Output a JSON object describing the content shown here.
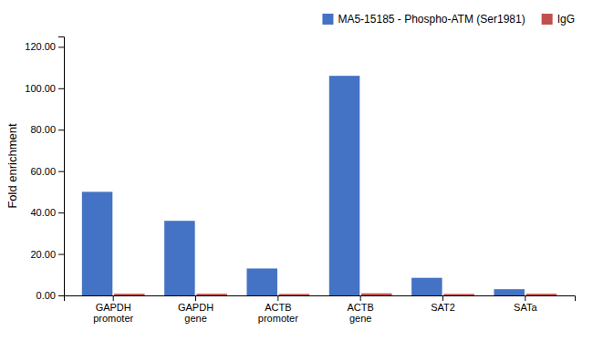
{
  "chart_data": {
    "type": "bar",
    "ylabel": "Fold enrichment",
    "categories": [
      "GAPDH\npromoter",
      "GAPDH\ngene",
      "ACTB\npromoter",
      "ACTB\ngene",
      "SAT2",
      "SATa"
    ],
    "series": [
      {
        "name": "MA5-15185 - Phospho-ATM (Ser1981)",
        "color": "#4472C4",
        "values": [
          50.0,
          36.0,
          13.0,
          106.0,
          8.5,
          3.0
        ]
      },
      {
        "name": "IgG",
        "color": "#C0504D",
        "values": [
          0.8,
          0.8,
          0.7,
          1.0,
          0.7,
          0.8
        ]
      }
    ],
    "ylim": [
      0,
      125
    ],
    "yticks": [
      {
        "value": 0.0,
        "label": "0.00"
      },
      {
        "value": 20.0,
        "label": "20.00"
      },
      {
        "value": 40.0,
        "label": "40.00"
      },
      {
        "value": 60.0,
        "label": "60.00"
      },
      {
        "value": 80.0,
        "label": "80.00"
      },
      {
        "value": 100.0,
        "label": "100.00"
      },
      {
        "value": 120.0,
        "label": "120.00"
      }
    ],
    "grid": false,
    "legend": "upper right"
  }
}
